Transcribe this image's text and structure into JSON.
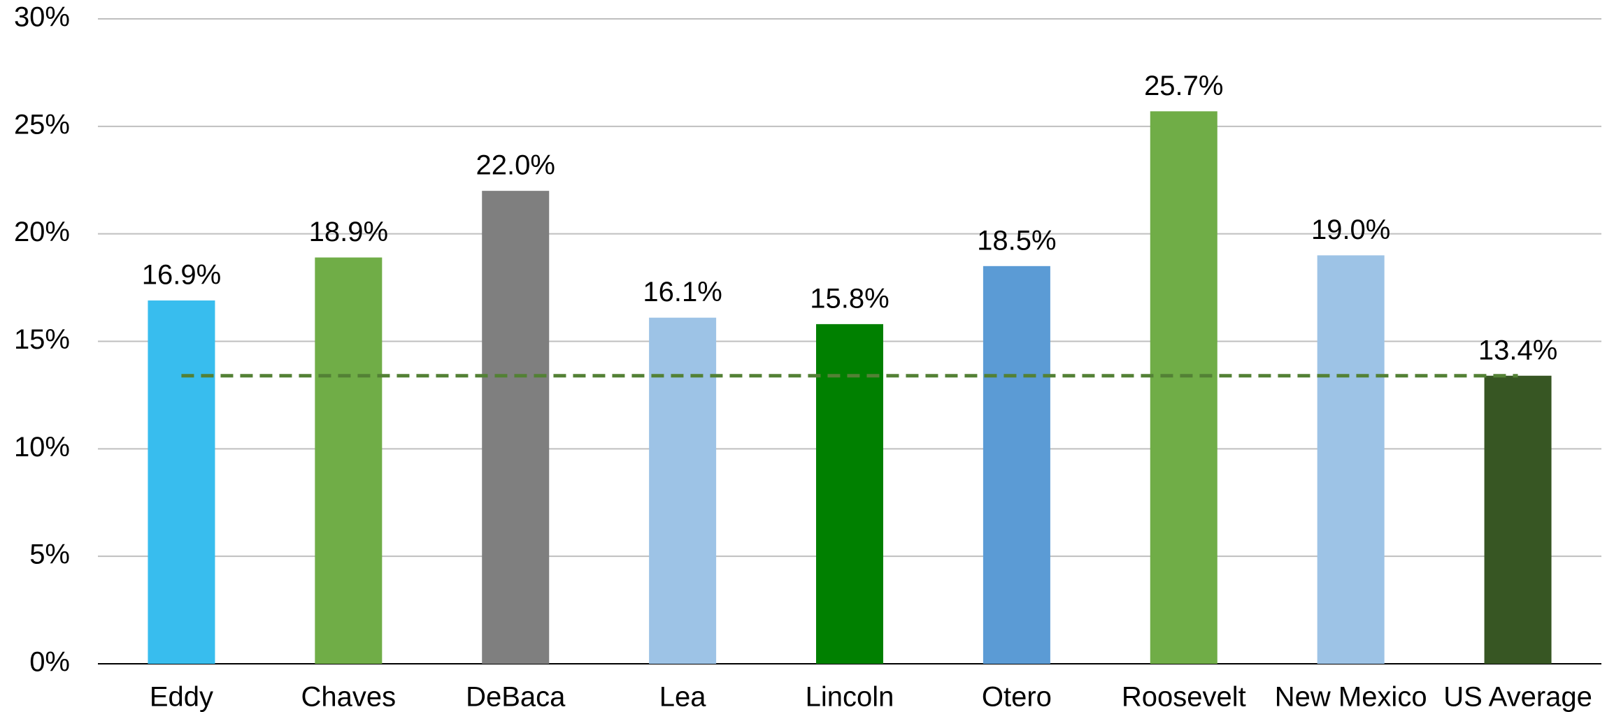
{
  "chart_data": {
    "type": "bar",
    "categories": [
      "Eddy",
      "Chaves",
      "DeBaca",
      "Lea",
      "Lincoln",
      "Otero",
      "Roosevelt",
      "New Mexico",
      "US Average"
    ],
    "values": [
      16.9,
      18.9,
      22.0,
      16.1,
      15.8,
      18.5,
      25.7,
      19.0,
      13.4
    ],
    "value_labels": [
      "16.9%",
      "18.9%",
      "22.0%",
      "16.1%",
      "15.8%",
      "18.5%",
      "25.7%",
      "19.0%",
      "13.4%"
    ],
    "colors": [
      "#38bdee",
      "#70ad47",
      "#7f7f7f",
      "#9dc3e6",
      "#008000",
      "#5b9bd5",
      "#70ad47",
      "#9dc3e6",
      "#375623"
    ],
    "ylim": [
      0,
      30
    ],
    "yticks": [
      {
        "value": 0,
        "label": "0%"
      },
      {
        "value": 5,
        "label": "5%"
      },
      {
        "value": 10,
        "label": "10%"
      },
      {
        "value": 15,
        "label": "15%"
      },
      {
        "value": 20,
        "label": "20%"
      },
      {
        "value": 25,
        "label": "25%"
      },
      {
        "value": 30,
        "label": "30%"
      }
    ],
    "grid": true,
    "reference_line": {
      "value": 13.4,
      "color": "#538135",
      "style": "dashed"
    }
  }
}
